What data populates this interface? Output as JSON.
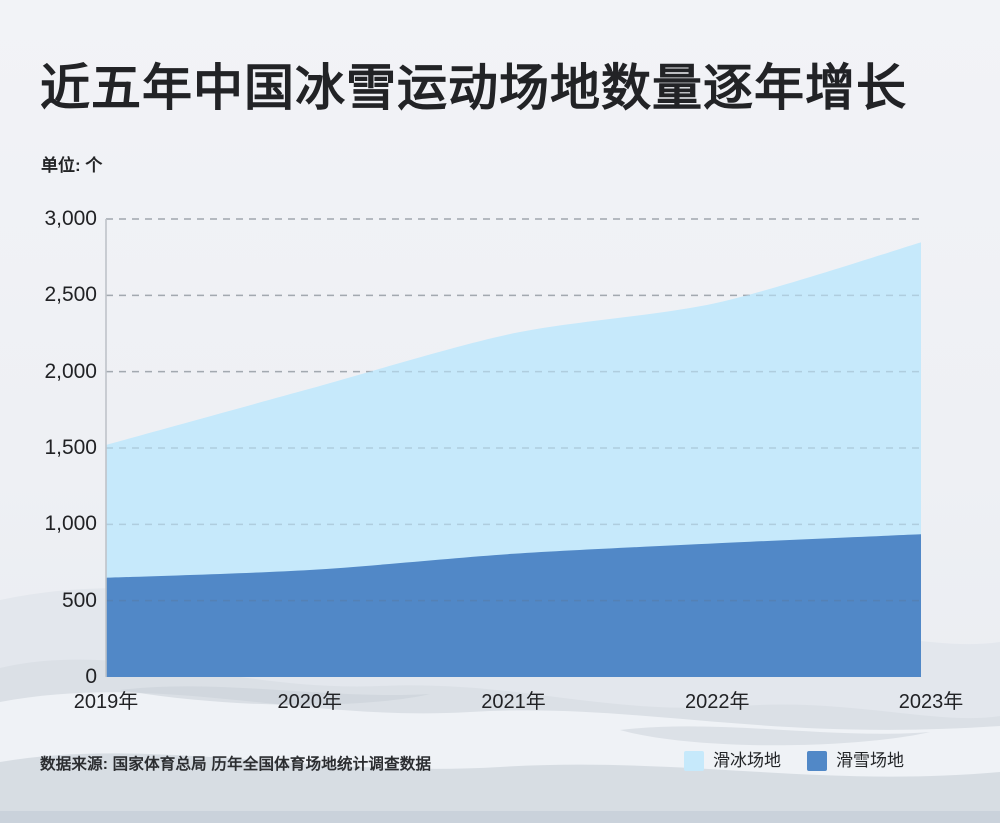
{
  "header": {
    "title": "近五年中国冰雪运动场地数量逐年增长",
    "unit_label": "单位: 个"
  },
  "chart_data": {
    "type": "area",
    "stacked": true,
    "smoothed": true,
    "title": "近五年中国冰雪运动场地数量逐年增长",
    "unit": "个",
    "categories": [
      "2019年",
      "2020年",
      "2021年",
      "2022年",
      "2023年"
    ],
    "series": [
      {
        "name": "滑冰场地",
        "color": "#C6E9FB",
        "values": [
          870,
          1187,
          1444,
          1576,
          1912
        ]
      },
      {
        "name": "滑雪场地",
        "color": "#5188C7",
        "values": [
          650,
          701,
          807,
          876,
          935
        ]
      }
    ],
    "stacked_totals": [
      1520,
      1888,
      2251,
      2452,
      2847
    ],
    "ylim": [
      0,
      3000
    ],
    "yticks": [
      0,
      500,
      1000,
      1500,
      2000,
      2500,
      3000
    ],
    "ytick_labels": [
      "0",
      "500",
      "1,000",
      "1,500",
      "2,000",
      "2,500",
      "3,000"
    ],
    "grid": "dashed-horizontal",
    "legend_position": "bottom-right"
  },
  "footer": {
    "source": "数据来源: 国家体育总局 历年全国体育场地统计调查数据"
  },
  "colors": {
    "ice_skating_blue": "#C6E9FB",
    "ski_blue": "#5188C7",
    "gridline": "#B7BBC1",
    "axis_line": "#BFC3C9",
    "text": "#222326",
    "background_top": "#F2F3F7"
  }
}
